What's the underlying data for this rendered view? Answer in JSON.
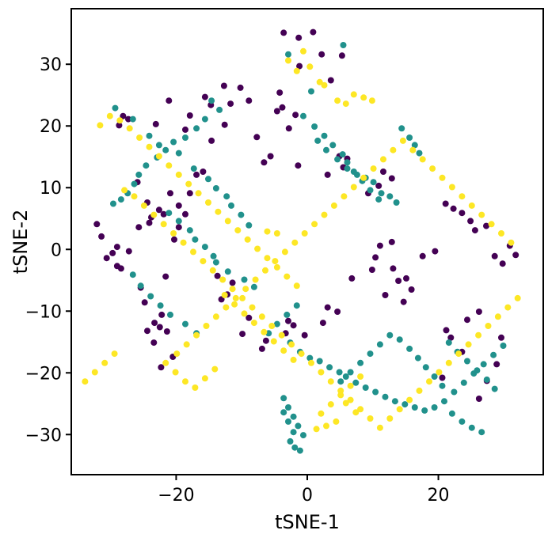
{
  "chart_data": {
    "type": "scatter",
    "title": "",
    "xlabel": "tSNE-1",
    "ylabel": "tSNE-2",
    "xlim": [
      -36,
      36
    ],
    "ylim": [
      -36.5,
      39
    ],
    "xticks": [
      -20,
      0,
      20
    ],
    "xtick_labels": [
      "−20",
      "0",
      "20"
    ],
    "yticks": [
      30,
      20,
      10,
      0,
      -10,
      -20,
      -30
    ],
    "ytick_labels": [
      "30",
      "20",
      "10",
      "0",
      "−10",
      "−20",
      "−30"
    ],
    "grid": false,
    "legend": "none",
    "colors": {
      "class_0": "#440154",
      "class_1": "#21918c",
      "class_2": "#fde725"
    },
    "series": [
      {
        "color": "#440154",
        "x": [
          -3.6,
          -1.3,
          0.9,
          2.2,
          -1.2,
          3.6,
          5.3,
          -4.2,
          -3.8,
          -1.8,
          -14.7,
          -15.6,
          -12.7,
          -18.6,
          -17.9,
          -21.1,
          -23.1,
          -28.7,
          -28.1,
          -27.3,
          -31.4,
          -32.1,
          -29.7,
          -29.0,
          -30.6,
          -28.4,
          -29.0,
          -27.2,
          -25.7,
          -24.1,
          -22.6,
          -21.9,
          -20.3,
          -19.6,
          -20.9,
          -21.6,
          -25.9,
          -24.4,
          -23.8,
          -22.5,
          -21.4,
          -23.3,
          -22.2,
          -24.8,
          -25.4,
          -13.1,
          -12.2,
          -11.4,
          -13.7,
          -9.9,
          -8.9,
          -3.3,
          -2.9,
          -2.1,
          -0.4,
          2.4,
          3.1,
          4.6,
          6.8,
          9.9,
          10.4,
          11.1,
          12.9,
          13.1,
          15.1,
          13.9,
          15.9,
          17.6,
          19.5,
          21.1,
          22.3,
          23.6,
          24.9,
          25.6,
          27.3,
          28.6,
          29.8,
          30.9,
          31.8,
          26.2,
          24.4,
          21.2,
          21.9,
          23.6,
          20.6,
          12.9,
          11.6,
          10.9,
          9.3,
          11.9,
          14.7,
          6.1,
          4.9,
          5.5,
          3.1,
          -1.4,
          -2.8,
          -4.6,
          -5.6,
          -6.6,
          -7.7,
          -8.9,
          -10.2,
          -11.7,
          -12.6,
          -14.6,
          -15.9,
          -16.9,
          -17.9,
          -18.6,
          -19.6,
          -20.5,
          -22.3,
          -23.4,
          -24.4,
          26.2,
          27.4,
          28.9,
          29.6,
          -6.3,
          -6.9
        ],
        "y": [
          35.1,
          34.3,
          35.2,
          31.6,
          29.7,
          27.4,
          31.4,
          25.4,
          23.0,
          21.8,
          23.4,
          24.7,
          26.5,
          19.4,
          21.7,
          24.1,
          20.3,
          20.1,
          21.6,
          21.1,
          2.1,
          4.1,
          -0.6,
          -2.7,
          -1.4,
          -3.1,
          0.4,
          -0.3,
          3.6,
          4.3,
          6.4,
          5.7,
          1.6,
          7.1,
          9.1,
          -4.4,
          10.9,
          7.6,
          5.2,
          -12.6,
          -13.3,
          -11.9,
          -10.6,
          -8.6,
          -6.2,
          -8.1,
          -7.3,
          -5.4,
          -4.3,
          -13.7,
          -11.1,
          -13.6,
          -11.6,
          -12.3,
          -13.9,
          -11.9,
          -9.4,
          -10.1,
          -4.7,
          -3.3,
          -1.3,
          0.6,
          1.2,
          -3.1,
          -4.7,
          -5.1,
          -6.5,
          -1.1,
          -0.3,
          7.4,
          6.6,
          5.9,
          4.6,
          3.1,
          3.8,
          -1.1,
          -2.3,
          0.6,
          -0.9,
          -10.1,
          -11.4,
          -13.1,
          -14.3,
          -16.6,
          -20.8,
          11.5,
          12.6,
          10.3,
          9.1,
          -7.4,
          -8.5,
          14.7,
          15.1,
          13.3,
          12.1,
          13.6,
          19.6,
          22.4,
          15.1,
          14.1,
          18.2,
          24.1,
          26.2,
          23.6,
          20.2,
          17.6,
          12.6,
          12.1,
          9.1,
          5.7,
          3.6,
          -17.4,
          -19.1,
          -15.1,
          -13.2,
          -24.2,
          -21.3,
          -18.6,
          -14.3,
          -14.8,
          -16.1
        ]
      },
      {
        "color": "#21918c",
        "x": [
          5.5,
          -2.9,
          0.6,
          -29.3,
          -26.6,
          -24.1,
          -22.6,
          -19.6,
          -17.3,
          -15.1,
          -13.9,
          -12.3,
          -11.6,
          -10.1,
          -8.9,
          -14.6,
          -13.4,
          -15.6,
          -16.9,
          -18.6,
          -20.4,
          -21.6,
          -22.9,
          -24.6,
          -25.7,
          -26.4,
          -27.4,
          -28.4,
          -29.6,
          -21.1,
          -19.6,
          -17.9,
          -17.1,
          -15.6,
          -14.3,
          -13.9,
          -12.1,
          -9.6,
          -8.1,
          -26.6,
          -25.4,
          -23.9,
          -22.4,
          -20.9,
          -18.6,
          -16.9,
          1.6,
          2.9,
          4.6,
          6.1,
          7.6,
          8.9,
          10.1,
          11.3,
          12.6,
          13.6,
          14.4,
          15.6,
          16.4,
          17.1,
          -0.6,
          1.1,
          2.6,
          3.9,
          5.4,
          6.1,
          7.1,
          8.4,
          9.6,
          10.9,
          -1.6,
          -3.1,
          -4.6,
          -5.9,
          -2.6,
          -1.1,
          0.4,
          1.9,
          3.4,
          4.9,
          5.9,
          7.4,
          8.9,
          10.4,
          11.9,
          13.4,
          14.9,
          16.4,
          17.9,
          19.4,
          20.9,
          22.4,
          23.9,
          25.4,
          26.9,
          28.4,
          29.9,
          -3.6,
          -2.9,
          -2.1,
          -1.4,
          -0.6,
          -2.6,
          -1.9,
          -1.1,
          -2.1,
          -2.9,
          -3.6,
          21.6,
          22.9,
          24.4,
          25.9,
          27.4,
          28.6,
          22.1,
          23.6,
          25.1,
          26.6,
          20.6,
          19.4,
          18.1,
          16.9,
          15.6,
          14.1,
          12.6,
          11.1,
          9.6,
          8.1,
          6.6,
          5.1
        ],
        "y": [
          33.1,
          31.6,
          25.6,
          22.9,
          21.1,
          18.4,
          16.9,
          15.6,
          13.1,
          11.4,
          9.9,
          8.6,
          7.1,
          5.6,
          3.9,
          24.1,
          22.6,
          21.1,
          19.6,
          18.1,
          17.4,
          16.1,
          14.9,
          13.6,
          12.1,
          10.6,
          9.1,
          8.1,
          7.4,
          5.9,
          4.6,
          3.1,
          1.6,
          0.4,
          -1.1,
          -2.1,
          -3.6,
          -4.9,
          -6.1,
          -4.1,
          -5.9,
          -7.6,
          -9.1,
          -10.6,
          -12.1,
          -13.6,
          17.6,
          16.1,
          14.6,
          13.1,
          12.1,
          11.6,
          10.9,
          9.1,
          8.6,
          7.6,
          19.6,
          18.1,
          16.9,
          15.6,
          21.6,
          19.9,
          18.4,
          16.9,
          15.4,
          14.1,
          12.6,
          11.1,
          9.6,
          8.1,
          -9.1,
          -10.6,
          -12.1,
          -13.6,
          -15.1,
          -16.6,
          -17.6,
          -18.1,
          -19.1,
          -19.9,
          -20.6,
          -21.6,
          -22.4,
          -23.1,
          -23.9,
          -24.6,
          -25.1,
          -25.6,
          -26.1,
          -25.6,
          -24.6,
          -23.1,
          -21.6,
          -20.1,
          -18.6,
          -17.1,
          -15.6,
          -24.1,
          -25.6,
          -27.1,
          -28.6,
          -30.1,
          -31.1,
          -32.1,
          -32.6,
          -29.6,
          -27.9,
          -26.4,
          -15.1,
          -16.6,
          -18.1,
          -19.6,
          -21.1,
          -22.6,
          -26.6,
          -27.9,
          -28.9,
          -29.6,
          -22.1,
          -20.6,
          -19.1,
          -17.6,
          -16.1,
          -14.6,
          -13.9,
          -15.4,
          -16.9,
          -18.4,
          -19.9,
          -21.4
        ]
      },
      {
        "color": "#fde725",
        "x": [
          -2.9,
          -1.6,
          0.4,
          -0.6,
          1.9,
          2.6,
          4.6,
          5.9,
          7.1,
          8.6,
          9.9,
          -31.6,
          -30.1,
          -28.6,
          -27.1,
          -25.6,
          -24.1,
          -22.6,
          -21.1,
          -19.6,
          -18.1,
          -16.6,
          -15.1,
          -13.6,
          -12.1,
          -10.6,
          -9.1,
          -7.6,
          -6.1,
          -4.6,
          -3.1,
          -1.6,
          -12.6,
          -11.1,
          -9.6,
          -8.1,
          -6.6,
          -5.1,
          -3.6,
          -2.1,
          -14.1,
          -15.6,
          -17.1,
          -18.6,
          -20.1,
          -21.6,
          -19.9,
          -18.4,
          -16.9,
          -15.4,
          -13.9,
          -12.4,
          -10.9,
          -9.4,
          -7.9,
          -6.4,
          -4.9,
          -3.4,
          -1.9,
          -0.4,
          1.1,
          2.6,
          4.1,
          5.6,
          7.1,
          8.6,
          10.1,
          11.6,
          13.1,
          14.6,
          16.1,
          17.6,
          19.1,
          20.6,
          22.1,
          23.6,
          25.1,
          26.6,
          28.1,
          29.6,
          31.1,
          32.1,
          30.6,
          29.1,
          27.6,
          26.1,
          24.6,
          23.1,
          21.6,
          20.1,
          18.6,
          17.1,
          15.6,
          14.1,
          12.6,
          11.1,
          9.6,
          8.1,
          6.6,
          5.1,
          3.6,
          2.1,
          0.6,
          -0.9,
          -2.4,
          -3.9,
          -5.4,
          -6.9,
          -8.4,
          -9.9,
          -11.4,
          -12.9,
          -14.4,
          -15.9,
          -17.4,
          -18.9,
          -20.4,
          -21.9,
          -23.4,
          -24.9,
          -26.4,
          -27.9,
          -29.4,
          -30.9,
          -32.4,
          -33.9,
          -4.6,
          -6.1,
          5.9,
          7.4,
          4.4,
          2.9,
          1.4,
          2.1,
          3.6,
          5.1,
          6.6,
          8.1
        ],
        "y": [
          30.6,
          28.9,
          29.6,
          32.1,
          27.1,
          26.6,
          24.1,
          23.6,
          25.1,
          24.6,
          24.1,
          20.1,
          21.6,
          20.9,
          19.6,
          18.1,
          16.6,
          15.1,
          13.6,
          12.1,
          10.6,
          9.1,
          7.6,
          6.1,
          4.6,
          3.1,
          1.6,
          0.1,
          -1.4,
          -2.9,
          -4.4,
          -5.9,
          -7.4,
          -8.9,
          -10.4,
          -11.9,
          -13.4,
          -14.9,
          -16.4,
          -17.9,
          -19.4,
          -20.9,
          -22.4,
          -21.4,
          -19.9,
          -18.4,
          -16.9,
          -15.4,
          -13.9,
          -12.4,
          -10.9,
          -9.4,
          -7.9,
          -6.4,
          -4.9,
          -3.4,
          -1.9,
          -0.4,
          1.1,
          2.6,
          4.1,
          5.6,
          7.1,
          8.6,
          10.1,
          11.6,
          13.1,
          14.6,
          16.1,
          17.6,
          16.1,
          14.6,
          13.1,
          11.6,
          10.1,
          8.6,
          7.1,
          5.6,
          4.1,
          2.6,
          1.1,
          -7.9,
          -9.4,
          -10.9,
          -12.4,
          -13.9,
          -15.4,
          -16.9,
          -18.4,
          -19.9,
          -21.4,
          -22.9,
          -24.4,
          -25.9,
          -27.4,
          -28.9,
          -27.4,
          -25.9,
          -24.4,
          -22.9,
          -21.4,
          -19.9,
          -18.4,
          -16.9,
          -15.4,
          -13.9,
          -12.4,
          -10.9,
          -9.4,
          -7.9,
          -6.4,
          -4.9,
          -3.4,
          -1.9,
          -0.4,
          1.1,
          2.6,
          4.1,
          5.6,
          7.1,
          8.6,
          9.6,
          -16.9,
          -18.4,
          -19.9,
          -21.4,
          2.6,
          2.9,
          -24.9,
          -26.4,
          -27.9,
          -28.6,
          -29.1,
          -26.6,
          -25.1,
          -23.6,
          -22.1,
          -20.6
        ]
      }
    ]
  }
}
